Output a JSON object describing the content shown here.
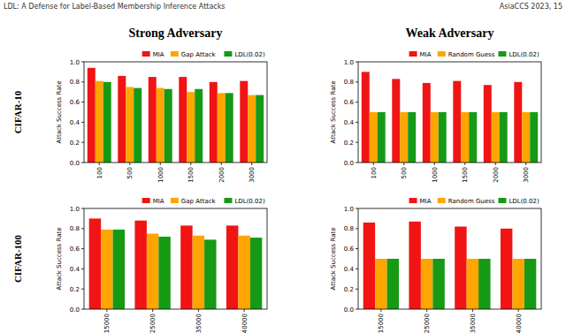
{
  "header": {
    "left": "LDL: A Defense for Label-Based Membership Inference Attacks",
    "right": "AsiaCCS 2023, 15"
  },
  "column_titles": [
    "Strong Adversary",
    "Weak Adversary"
  ],
  "row_labels": [
    "CIFAR-10",
    "CIFAR-100"
  ],
  "chart_data": [
    {
      "type": "bar",
      "y_label": "Attack Success Rate",
      "categories": [
        "100",
        "500",
        "1000",
        "1500",
        "2000",
        "3000"
      ],
      "series": [
        {
          "name": "MIA",
          "color": "#f01414",
          "values": [
            0.94,
            0.86,
            0.85,
            0.85,
            0.8,
            0.81
          ]
        },
        {
          "name": "Gap Attack",
          "color": "#ffa500",
          "values": [
            0.81,
            0.75,
            0.74,
            0.7,
            0.69,
            0.67
          ]
        },
        {
          "name": "LDL(0.02)",
          "color": "#169a16",
          "values": [
            0.8,
            0.74,
            0.73,
            0.73,
            0.69,
            0.67
          ]
        }
      ],
      "ylim": [
        0,
        1
      ],
      "yticks": [
        {
          "value": 0,
          "label": "0.0"
        },
        {
          "value": 0.2,
          "label": "0.2"
        },
        {
          "value": 0.4,
          "label": "0.4"
        },
        {
          "value": 0.6,
          "label": "0.6"
        },
        {
          "value": 0.8,
          "label": "0.8"
        },
        {
          "value": 1,
          "label": "1.0"
        }
      ],
      "grid": false,
      "legend": "top"
    },
    {
      "type": "bar",
      "y_label": "Attack Success Rate",
      "categories": [
        "100",
        "500",
        "1000",
        "1500",
        "2000",
        "3000"
      ],
      "series": [
        {
          "name": "MIA",
          "color": "#f01414",
          "values": [
            0.9,
            0.83,
            0.79,
            0.81,
            0.77,
            0.8
          ]
        },
        {
          "name": "Random Guess",
          "color": "#ffa500",
          "values": [
            0.5,
            0.5,
            0.5,
            0.5,
            0.5,
            0.5
          ]
        },
        {
          "name": "LDL(0.02)",
          "color": "#169a16",
          "values": [
            0.5,
            0.5,
            0.5,
            0.5,
            0.5,
            0.5
          ]
        }
      ],
      "ylim": [
        0,
        1
      ],
      "yticks": [
        {
          "value": 0,
          "label": "0.0"
        },
        {
          "value": 0.2,
          "label": "0.2"
        },
        {
          "value": 0.4,
          "label": "0.4"
        },
        {
          "value": 0.6,
          "label": "0.6"
        },
        {
          "value": 0.8,
          "label": "0.8"
        },
        {
          "value": 1,
          "label": "1.0"
        }
      ],
      "grid": false,
      "legend": "top"
    },
    {
      "type": "bar",
      "y_label": "Attack Success Rate",
      "categories": [
        "15000",
        "25000",
        "35000",
        "40000"
      ],
      "series": [
        {
          "name": "MIA",
          "color": "#f01414",
          "values": [
            0.9,
            0.88,
            0.83,
            0.83
          ]
        },
        {
          "name": "Gap Attack",
          "color": "#ffa500",
          "values": [
            0.79,
            0.75,
            0.73,
            0.73
          ]
        },
        {
          "name": "LDL(0.02)",
          "color": "#169a16",
          "values": [
            0.79,
            0.72,
            0.69,
            0.71
          ]
        }
      ],
      "ylim": [
        0,
        1
      ],
      "yticks": [
        {
          "value": 0,
          "label": "0.0"
        },
        {
          "value": 0.2,
          "label": "0.2"
        },
        {
          "value": 0.4,
          "label": "0.4"
        },
        {
          "value": 0.6,
          "label": "0.6"
        },
        {
          "value": 0.8,
          "label": "0.8"
        },
        {
          "value": 1,
          "label": "1.0"
        }
      ],
      "grid": false,
      "legend": "top"
    },
    {
      "type": "bar",
      "y_label": "Attack Success Rate",
      "categories": [
        "15000",
        "25000",
        "35000",
        "40000"
      ],
      "series": [
        {
          "name": "MIA",
          "color": "#f01414",
          "values": [
            0.86,
            0.87,
            0.82,
            0.8
          ]
        },
        {
          "name": "Random Guess",
          "color": "#ffa500",
          "values": [
            0.5,
            0.5,
            0.5,
            0.5
          ]
        },
        {
          "name": "LDL(0.02)",
          "color": "#169a16",
          "values": [
            0.5,
            0.5,
            0.5,
            0.5
          ]
        }
      ],
      "ylim": [
        0,
        1
      ],
      "yticks": [
        {
          "value": 0,
          "label": "0.0"
        },
        {
          "value": 0.2,
          "label": "0.2"
        },
        {
          "value": 0.4,
          "label": "0.4"
        },
        {
          "value": 0.6,
          "label": "0.6"
        },
        {
          "value": 0.8,
          "label": "0.8"
        },
        {
          "value": 1,
          "label": "1.0"
        }
      ],
      "grid": false,
      "legend": "top"
    }
  ]
}
